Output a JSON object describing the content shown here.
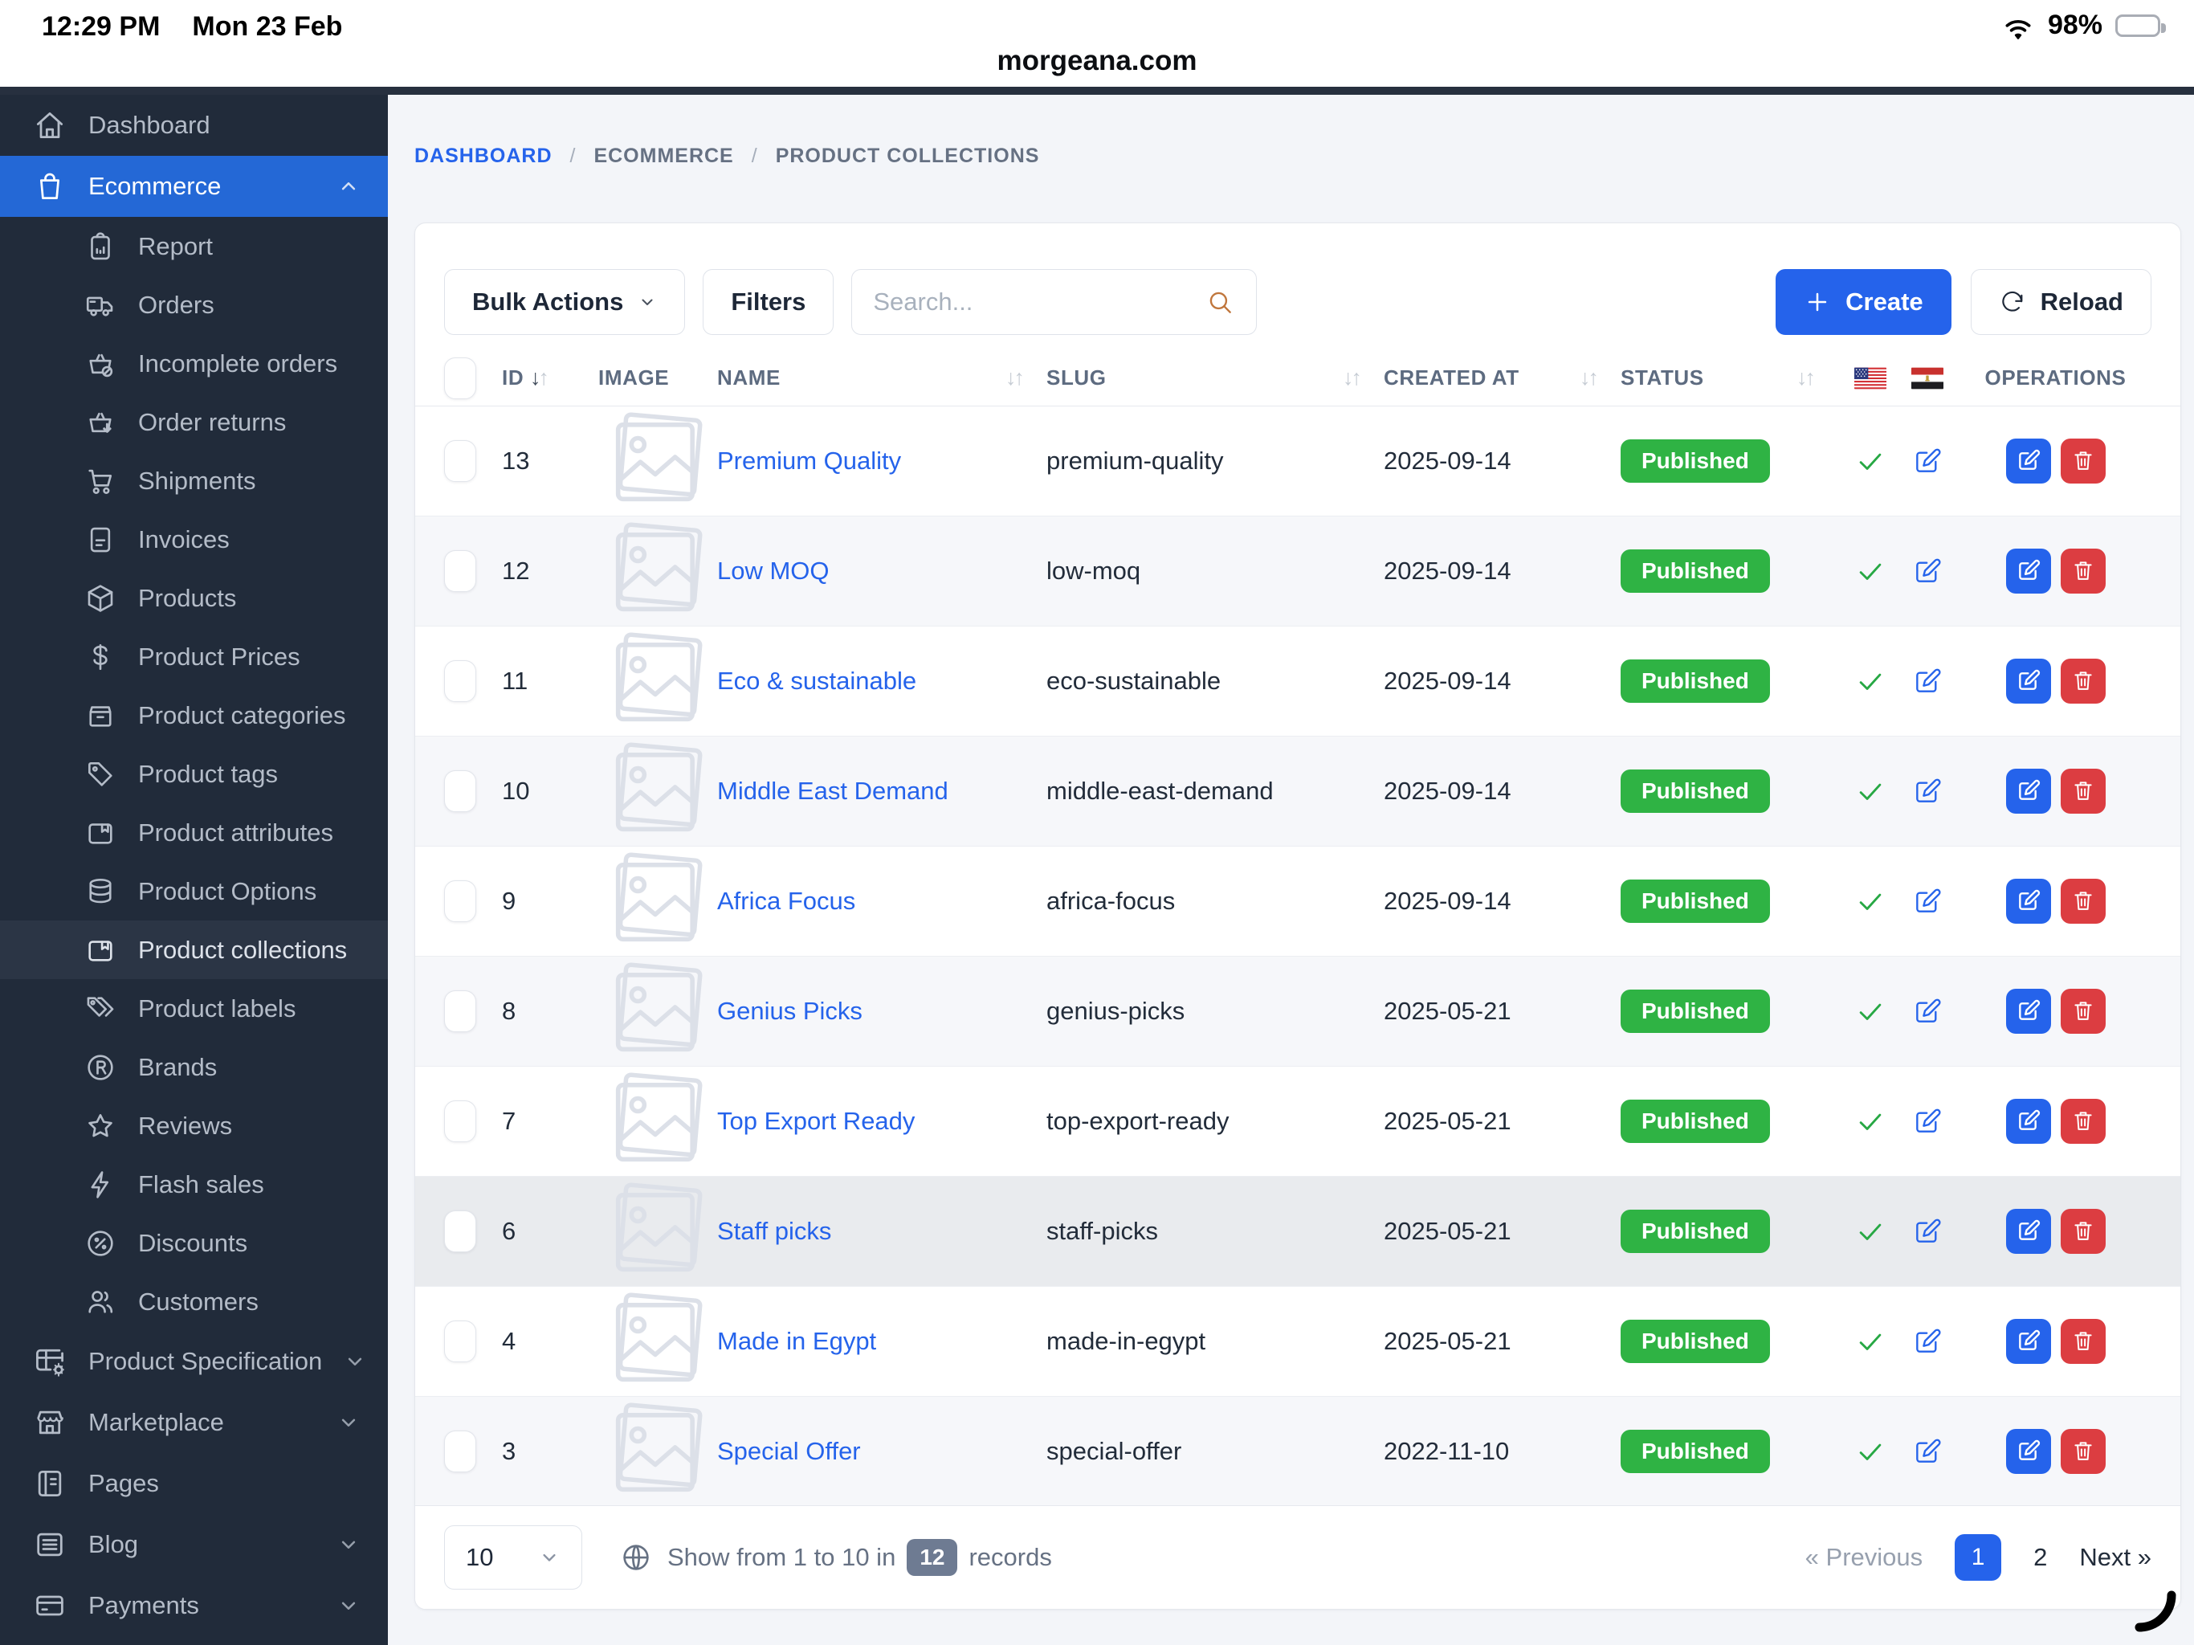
{
  "colors": {
    "accent": "#2563eb",
    "link": "#2563eb",
    "green": "#2fb344",
    "red": "#dc3d41",
    "sidebar_bg": "#212b3a",
    "sidebar_active": "#2468d6",
    "content_bg": "#f3f5f9"
  },
  "status_bar": {
    "time": "12:29 PM",
    "date": "Mon 23 Feb",
    "battery_percent": "98%",
    "url": "morgeana.com"
  },
  "sidebar": {
    "items": [
      {
        "label": "Dashboard",
        "icon": "home",
        "type": "top"
      },
      {
        "label": "Ecommerce",
        "icon": "shopping-bag",
        "type": "top",
        "active": true,
        "chevron": "up"
      },
      {
        "label": "Report",
        "icon": "clipboard-chart",
        "type": "sub"
      },
      {
        "label": "Orders",
        "icon": "truck",
        "type": "sub"
      },
      {
        "label": "Incomplete orders",
        "icon": "basket-cancel",
        "type": "sub"
      },
      {
        "label": "Order returns",
        "icon": "basket-return",
        "type": "sub"
      },
      {
        "label": "Shipments",
        "icon": "shopping-cart",
        "type": "sub"
      },
      {
        "label": "Invoices",
        "icon": "invoice",
        "type": "sub"
      },
      {
        "label": "Products",
        "icon": "package-box",
        "type": "sub"
      },
      {
        "label": "Product Prices",
        "icon": "dollar",
        "type": "sub"
      },
      {
        "label": "Product categories",
        "icon": "archive-box",
        "type": "sub"
      },
      {
        "label": "Product tags",
        "icon": "tag",
        "type": "sub"
      },
      {
        "label": "Product attributes",
        "icon": "box-bookmark",
        "type": "sub"
      },
      {
        "label": "Product Options",
        "icon": "database",
        "type": "sub"
      },
      {
        "label": "Product collections",
        "icon": "box-bookmark",
        "type": "sub",
        "current": true
      },
      {
        "label": "Product labels",
        "icon": "tags",
        "type": "sub"
      },
      {
        "label": "Brands",
        "icon": "registered",
        "type": "sub"
      },
      {
        "label": "Reviews",
        "icon": "star",
        "type": "sub"
      },
      {
        "label": "Flash sales",
        "icon": "bolt",
        "type": "sub"
      },
      {
        "label": "Discounts",
        "icon": "percent-circle",
        "type": "sub"
      },
      {
        "label": "Customers",
        "icon": "users",
        "type": "sub"
      },
      {
        "label": "Product Specification",
        "icon": "table-gear",
        "type": "top",
        "chevron": "down"
      },
      {
        "label": "Marketplace",
        "icon": "store",
        "type": "top",
        "chevron": "down"
      },
      {
        "label": "Pages",
        "icon": "book-page",
        "type": "top"
      },
      {
        "label": "Blog",
        "icon": "blog-list",
        "type": "top",
        "chevron": "down"
      },
      {
        "label": "Payments",
        "icon": "credit-card",
        "type": "top",
        "chevron": "down"
      }
    ]
  },
  "breadcrumb": {
    "separator": "/",
    "items": [
      "DASHBOARD",
      "ECOMMERCE",
      "PRODUCT COLLECTIONS"
    ]
  },
  "toolbar": {
    "bulk_actions": "Bulk Actions",
    "filters": "Filters",
    "search_placeholder": "Search...",
    "create": "Create",
    "reload": "Reload"
  },
  "table": {
    "columns": {
      "id": "ID",
      "image": "IMAGE",
      "name": "NAME",
      "slug": "SLUG",
      "created_at": "CREATED AT",
      "status": "STATUS",
      "operations": "OPERATIONS"
    },
    "sort": {
      "id": "desc"
    },
    "rows": [
      {
        "id": "13",
        "name": "Premium Quality",
        "slug": "premium-quality",
        "created_at": "2025-09-14",
        "status": "Published"
      },
      {
        "id": "12",
        "name": "Low MOQ",
        "slug": "low-moq",
        "created_at": "2025-09-14",
        "status": "Published"
      },
      {
        "id": "11",
        "name": "Eco & sustainable",
        "slug": "eco-sustainable",
        "created_at": "2025-09-14",
        "status": "Published"
      },
      {
        "id": "10",
        "name": "Middle East Demand",
        "slug": "middle-east-demand",
        "created_at": "2025-09-14",
        "status": "Published"
      },
      {
        "id": "9",
        "name": "Africa Focus",
        "slug": "africa-focus",
        "created_at": "2025-09-14",
        "status": "Published"
      },
      {
        "id": "8",
        "name": "Genius Picks",
        "slug": "genius-picks",
        "created_at": "2025-05-21",
        "status": "Published"
      },
      {
        "id": "7",
        "name": "Top Export Ready",
        "slug": "top-export-ready",
        "created_at": "2025-05-21",
        "status": "Published"
      },
      {
        "id": "6",
        "name": "Staff picks",
        "slug": "staff-picks",
        "created_at": "2025-05-21",
        "status": "Published",
        "highlighted": true
      },
      {
        "id": "4",
        "name": "Made in Egypt",
        "slug": "made-in-egypt",
        "created_at": "2025-05-21",
        "status": "Published"
      },
      {
        "id": "3",
        "name": "Special Offer",
        "slug": "special-offer",
        "created_at": "2022-11-10",
        "status": "Published"
      }
    ]
  },
  "footer": {
    "per_page": "10",
    "show_text": "Show from 1 to 10 in",
    "records_badge": "12",
    "records_suffix": "records",
    "previous": "« Previous",
    "page_1": "1",
    "page_2": "2",
    "next": "Next »"
  }
}
